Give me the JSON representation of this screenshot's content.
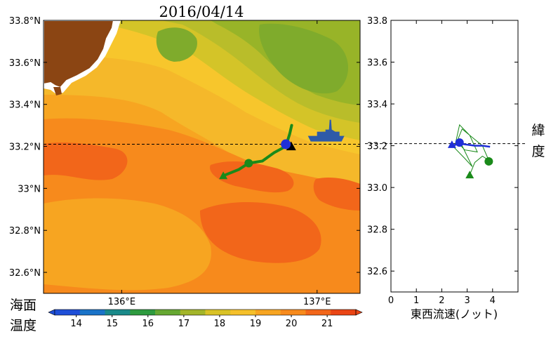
{
  "chart_data": [
    {
      "type": "heatmap",
      "title": "2016/04/14",
      "x_ticks": [
        {
          "value": 136,
          "label": "136°E"
        },
        {
          "value": 137,
          "label": "137°E"
        }
      ],
      "y_ticks": [
        {
          "value": 33.8,
          "label": "33.8°N"
        },
        {
          "value": 33.6,
          "label": "33.6°N"
        },
        {
          "value": 33.4,
          "label": "33.4°N"
        },
        {
          "value": 33.2,
          "label": "33.2°N"
        },
        {
          "value": 33.0,
          "label": "33°N"
        },
        {
          "value": 32.8,
          "label": "32.8°N"
        },
        {
          "value": 32.6,
          "label": "32.6°N"
        }
      ],
      "xlim": [
        135.6,
        137.22
      ],
      "ylim": [
        32.5,
        33.8
      ],
      "reference_latitude": 33.21,
      "colorbar": {
        "label_line1": "海面",
        "label_line2": "温度",
        "ticks": [
          14,
          15,
          16,
          17,
          18,
          19,
          20,
          21
        ],
        "range": [
          13.4,
          21.8
        ],
        "colors": [
          "#1f4fd8",
          "#1a73c8",
          "#1a8a8a",
          "#2e9b3f",
          "#66a832",
          "#a3b52a",
          "#d9c226",
          "#f5c02a",
          "#f7a521",
          "#f78a1c",
          "#f2661a",
          "#ea4515"
        ]
      },
      "track": {
        "color": "#1a8a1a",
        "lon": [
          136.87,
          136.86,
          136.84,
          136.78,
          136.72,
          136.65,
          136.6,
          136.52
        ],
        "lat": [
          33.3,
          33.26,
          33.2,
          33.17,
          33.13,
          33.12,
          33.09,
          33.06
        ],
        "start": {
          "lon": 136.52,
          "lat": 33.06
        },
        "end": {
          "lon": 136.86,
          "lat": 33.2
        }
      },
      "current_position": {
        "lon": 136.84,
        "lat": 33.21,
        "color": "#1f2fd8"
      },
      "ship": {
        "lon": 137.05,
        "lat": 33.24,
        "color": "#2e5aa8"
      }
    },
    {
      "type": "line",
      "xlabel": "東西流速(ノット)",
      "ylabel": "緯度",
      "xlim": [
        0,
        5
      ],
      "ylim": [
        32.5,
        33.8
      ],
      "x_ticks": [
        0,
        1,
        2,
        3,
        4
      ],
      "y_ticks": [
        33.8,
        33.6,
        33.4,
        33.2,
        33.0,
        32.8,
        32.6
      ],
      "y_tick_labels": [
        "33.8",
        "33.6",
        "33.4",
        "33.2",
        "33.0",
        "32.8",
        "32.6"
      ],
      "reference_latitude": 33.21,
      "series": [
        {
          "color": "#1f2fd8",
          "x": [
            2.4,
            2.7,
            3.0,
            3.3,
            3.6,
            3.9
          ],
          "y": [
            33.2,
            33.21,
            33.205,
            33.2,
            33.2,
            33.195
          ],
          "start": {
            "x": 2.4,
            "y": 33.205
          },
          "end": {
            "x": 2.7,
            "y": 33.215
          }
        },
        {
          "color": "#1a8a1a",
          "x": [
            3.1,
            3.3,
            3.6,
            3.85,
            3.6,
            3.2,
            2.8,
            2.6,
            2.9,
            3.4,
            3.1,
            2.7,
            2.5,
            2.9,
            3.2,
            2.8,
            2.6
          ],
          "y": [
            33.06,
            33.12,
            33.15,
            33.13,
            33.2,
            33.24,
            33.28,
            33.22,
            33.18,
            33.17,
            33.25,
            33.3,
            33.19,
            33.14,
            33.1,
            33.2,
            33.2
          ],
          "start": {
            "x": 3.1,
            "y": 33.06
          },
          "end": {
            "x": 3.85,
            "y": 33.125
          }
        }
      ]
    }
  ]
}
